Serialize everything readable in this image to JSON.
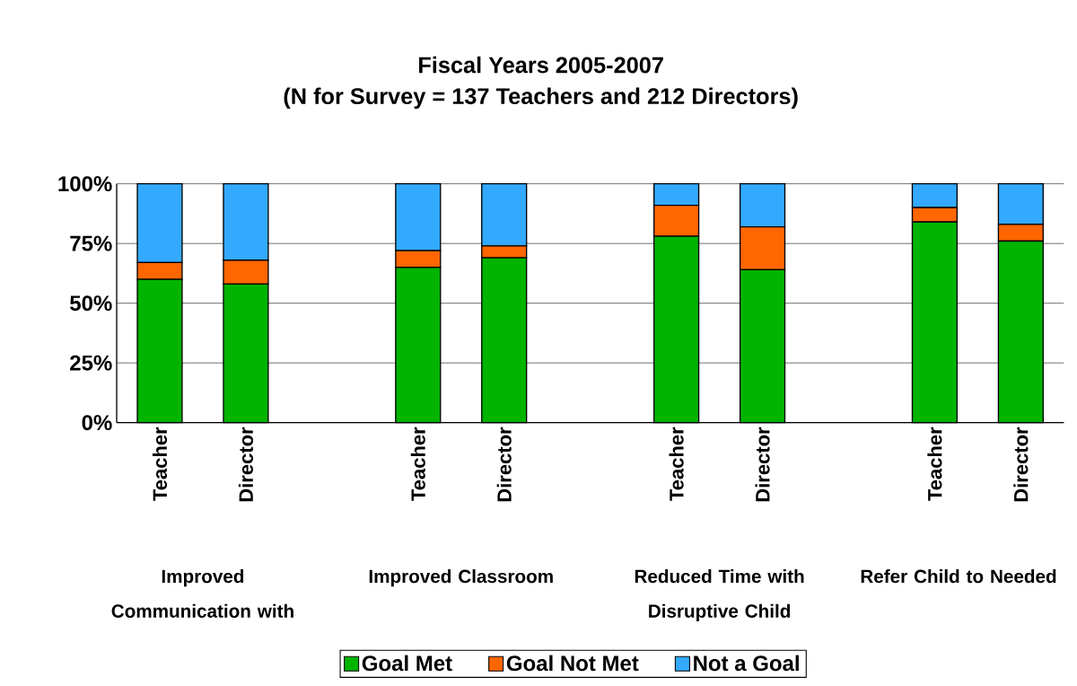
{
  "chart_data": {
    "type": "bar",
    "stacked": true,
    "title": "Fiscal Years 2005-2007",
    "subtitle": "(N for Survey = 137 Teachers and 212 Directors)",
    "categories": [
      "Teacher",
      "Director",
      null,
      "Teacher",
      "Director",
      null,
      "Teacher",
      "Director",
      null,
      "Teacher",
      "Director"
    ],
    "series": [
      {
        "name": "Goal Met",
        "color": "#00b400",
        "values": [
          60,
          58,
          null,
          65,
          69,
          null,
          78,
          64,
          null,
          84,
          76
        ]
      },
      {
        "name": "Goal Not Met",
        "color": "#ff6600",
        "values": [
          7,
          10,
          null,
          7,
          5,
          null,
          13,
          18,
          null,
          6,
          7
        ]
      },
      {
        "name": "Not a Goal",
        "color": "#33aaff",
        "values": [
          33,
          32,
          null,
          28,
          26,
          null,
          9,
          18,
          null,
          10,
          17
        ]
      }
    ],
    "ylim": [
      0,
      100
    ],
    "yticks": [
      {
        "value": 0,
        "label": "0%"
      },
      {
        "value": 25,
        "label": "25%"
      },
      {
        "value": 50,
        "label": "50%"
      },
      {
        "value": 75,
        "label": "75%"
      },
      {
        "value": 100,
        "label": "100%"
      }
    ],
    "grid": "y",
    "legend": "bottom",
    "annotations": [
      "Improved Communication with",
      "Improved Classroom",
      "Reduced Time with Disruptive Child",
      "Refer Child to Needed"
    ]
  }
}
